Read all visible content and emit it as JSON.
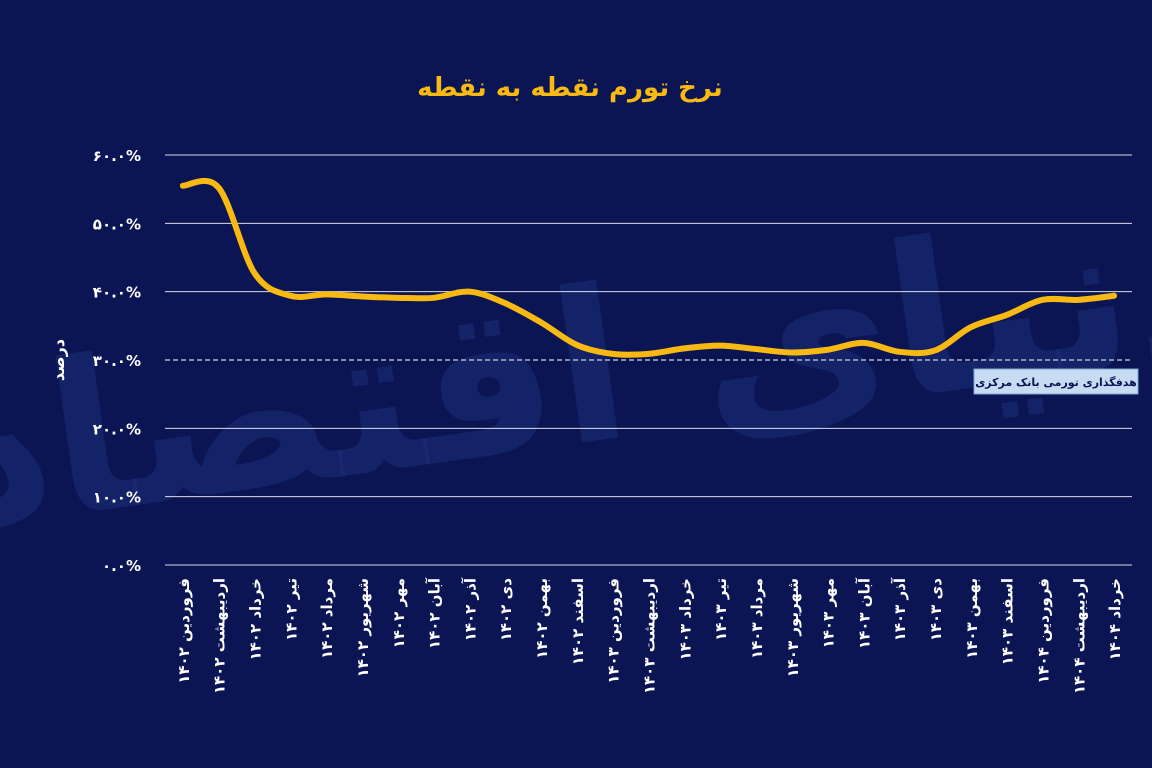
{
  "colors": {
    "background": "#0b1554",
    "line": "#f8b912",
    "title": "#f8b912",
    "grid": "#ffffff",
    "text": "#ffffff",
    "target_box_fill": "#c5dcf3",
    "target_box_text": "#0b1554",
    "watermark": "#1e2d78"
  },
  "watermark": {
    "text": "دنیای اقتصاد"
  },
  "chart_data": {
    "type": "line",
    "title": "نرخ تورم نقطه به نقطه",
    "xlabel": "",
    "ylabel": "درصد",
    "ylim": [
      0,
      60
    ],
    "ytick_values": [
      0,
      10,
      20,
      30,
      40,
      50,
      60
    ],
    "ytick_labels": [
      "۰.۰%",
      "۱۰.۰%",
      "۲۰.۰%",
      "۳۰.۰%",
      "۴۰.۰%",
      "۵۰.۰%",
      "۶۰.۰%"
    ],
    "grid": true,
    "categories": [
      "فروردین ۱۴۰۲",
      "اردیبهشت ۱۴۰۲",
      "خرداد ۱۴۰۲",
      "تیر ۱۴۰۲",
      "مرداد ۱۴۰۲",
      "شهریور ۱۴۰۲",
      "مهر ۱۴۰۲",
      "آبان ۱۴۰۲",
      "آذر ۱۴۰۲",
      "دی ۱۴۰۲",
      "بهمن ۱۴۰۲",
      "اسفند ۱۴۰۲",
      "فروردین ۱۴۰۳",
      "اردیبهشت ۱۴۰۳",
      "خرداد ۱۴۰۳",
      "تیر ۱۴۰۳",
      "مرداد ۱۴۰۳",
      "شهریور ۱۴۰۳",
      "مهر ۱۴۰۳",
      "آبان ۱۴۰۳",
      "آذر ۱۴۰۳",
      "دی ۱۴۰۳",
      "بهمن ۱۴۰۳",
      "اسفند ۱۴۰۳",
      "فروردین ۱۴۰۴",
      "اردیبهشت ۱۴۰۴",
      "خرداد ۱۴۰۴"
    ],
    "series": [
      {
        "name": "نرخ تورم نقطه به نقطه",
        "values": [
          55.5,
          55.2,
          42.7,
          39.4,
          39.6,
          39.3,
          39.1,
          39.1,
          40.0,
          38.3,
          35.5,
          32.2,
          30.9,
          30.9,
          31.7,
          32.1,
          31.6,
          31.1,
          31.5,
          32.5,
          31.2,
          31.4,
          34.8,
          36.6,
          38.8,
          38.8,
          39.4
        ]
      }
    ],
    "target_line": {
      "value": 30,
      "label": "هدفگذاری تورمی بانک مرکزی"
    }
  }
}
